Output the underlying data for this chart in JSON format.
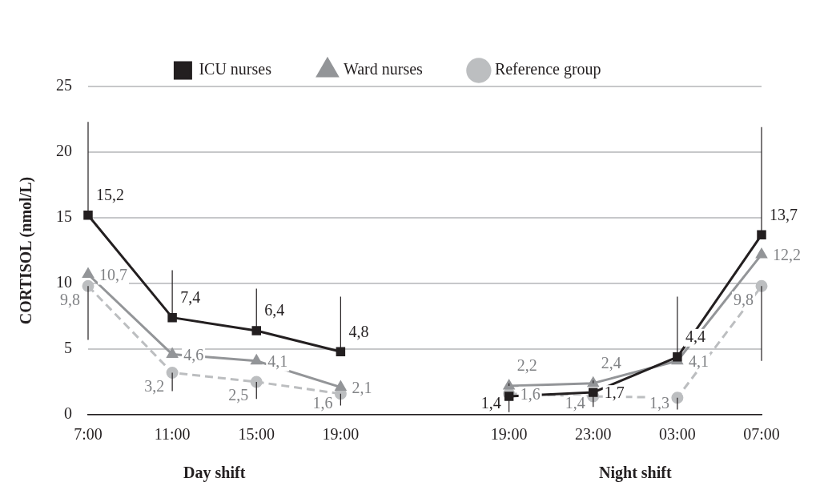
{
  "chart_data": {
    "type": "line",
    "ylabel": "CORTISOL (nmol/L)",
    "categories": [
      "7:00",
      "11:00",
      "15:00",
      "19:00",
      null,
      "19:00",
      "23:00",
      "03:00",
      "07:00"
    ],
    "series": [
      {
        "name": "ICU nurses",
        "color": "#231f20",
        "marker": "square",
        "line_style": "solid",
        "values": [
          15.2,
          7.4,
          6.4,
          4.8,
          null,
          1.4,
          1.7,
          4.4,
          13.7
        ],
        "value_labels": [
          "15,2",
          "7,4",
          "6,4",
          "4,8",
          null,
          "1,4",
          "1,7",
          "4,4",
          "13,7"
        ],
        "errors": [
          [
            15.2,
            22.3
          ],
          [
            7.4,
            11.0
          ],
          [
            6.4,
            9.6
          ],
          [
            4.8,
            9.0
          ],
          null,
          null,
          null,
          [
            4.4,
            9.0
          ],
          [
            13.7,
            21.9
          ]
        ]
      },
      {
        "name": "Ward nurses",
        "color": "#939598",
        "marker": "triangle",
        "line_style": "solid",
        "values": [
          10.7,
          4.6,
          4.1,
          2.1,
          null,
          2.2,
          2.4,
          4.1,
          12.2
        ],
        "value_labels": [
          "10,7",
          "4,6",
          "4,1",
          "2,1",
          null,
          "2,2",
          "2,4",
          "4,1",
          "12,2"
        ],
        "errors": [
          null,
          null,
          null,
          null,
          null,
          [
            2.2,
            2.4
          ],
          [
            2.4,
            2.6
          ],
          null,
          null
        ]
      },
      {
        "name": "Reference group",
        "color": "#bcbec0",
        "marker": "circle",
        "line_style": "dashed",
        "values": [
          9.8,
          3.2,
          2.5,
          1.6,
          null,
          1.6,
          1.4,
          1.3,
          9.8
        ],
        "value_labels": [
          "9,8",
          "3,2",
          "2,5",
          "1,6",
          null,
          "1,6",
          "1,4",
          "1,3",
          "9,8"
        ],
        "errors": [
          [
            5.7,
            9.8
          ],
          [
            1.8,
            3.2
          ],
          [
            1.2,
            2.5
          ],
          [
            0.7,
            1.6
          ],
          null,
          [
            0.2,
            1.6
          ],
          [
            0.6,
            1.4
          ],
          [
            0.4,
            1.3
          ],
          [
            4.1,
            9.8
          ]
        ]
      }
    ],
    "ylim": [
      0,
      25
    ],
    "yticks": [
      0,
      5,
      10,
      15,
      20,
      25
    ],
    "grid": "y",
    "legend": "top",
    "annotations": [
      "Day shift",
      "Night shift"
    ]
  }
}
